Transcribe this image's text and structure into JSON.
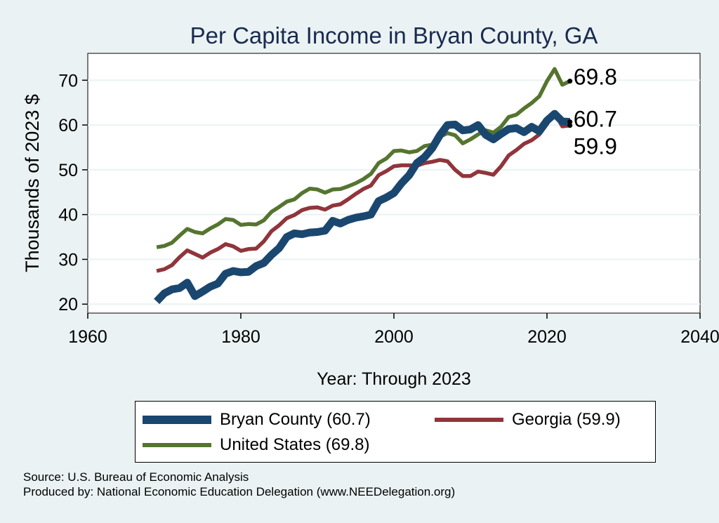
{
  "chart_data": {
    "type": "line",
    "title": "Per Capita Income in Bryan County, GA",
    "xlabel": "Year: Through 2023",
    "ylabel": "Thousands of 2023 $",
    "xlim": [
      1960,
      2040
    ],
    "ylim": [
      18,
      76
    ],
    "xticks": [
      1960,
      1980,
      2000,
      2020,
      2040
    ],
    "yticks": [
      20,
      30,
      40,
      50,
      60,
      70
    ],
    "grid": true,
    "legend_position": "bottom",
    "x": [
      1969,
      1970,
      1971,
      1972,
      1973,
      1974,
      1975,
      1976,
      1977,
      1978,
      1979,
      1980,
      1981,
      1982,
      1983,
      1984,
      1985,
      1986,
      1987,
      1988,
      1989,
      1990,
      1991,
      1992,
      1993,
      1994,
      1995,
      1996,
      1997,
      1998,
      1999,
      2000,
      2001,
      2002,
      2003,
      2004,
      2005,
      2006,
      2007,
      2008,
      2009,
      2010,
      2011,
      2012,
      2013,
      2014,
      2015,
      2016,
      2017,
      2018,
      2019,
      2020,
      2021,
      2022,
      2023
    ],
    "series": [
      {
        "name": "Bryan County",
        "legend_label": "Bryan County (60.7)",
        "end_label": "60.7",
        "color": "#1a476f",
        "values": [
          20.6,
          22.4,
          23.3,
          23.6,
          24.8,
          21.8,
          22.8,
          23.9,
          24.6,
          26.8,
          27.4,
          27.1,
          27.2,
          28.5,
          29.2,
          31.0,
          32.5,
          35.0,
          35.8,
          35.6,
          36.0,
          36.1,
          36.4,
          38.6,
          38.0,
          38.8,
          39.3,
          39.6,
          40.0,
          43.0,
          43.8,
          44.8,
          47.0,
          48.8,
          51.5,
          52.8,
          54.8,
          57.7,
          60.0,
          60.1,
          58.8,
          59.0,
          60.0,
          57.8,
          56.8,
          58.0,
          59.1,
          59.3,
          58.4,
          59.6,
          58.6,
          61.0,
          62.5,
          60.8,
          60.7
        ]
      },
      {
        "name": "Georgia",
        "legend_label": "Georgia (59.9)",
        "end_label": "59.9",
        "color": "#90353b",
        "values": [
          27.4,
          27.8,
          28.7,
          30.5,
          32.0,
          31.2,
          30.4,
          31.5,
          32.3,
          33.4,
          32.9,
          31.9,
          32.3,
          32.4,
          34.0,
          36.3,
          37.6,
          39.2,
          39.9,
          41.0,
          41.5,
          41.6,
          41.1,
          42.0,
          42.3,
          43.4,
          44.6,
          45.7,
          46.5,
          48.8,
          49.7,
          50.8,
          51.0,
          51.0,
          50.9,
          51.5,
          51.8,
          52.2,
          51.9,
          50.0,
          48.6,
          48.6,
          49.6,
          49.3,
          48.9,
          50.8,
          53.2,
          54.4,
          55.8,
          56.6,
          57.9,
          60.2,
          62.7,
          59.7,
          59.9
        ]
      },
      {
        "name": "United States",
        "legend_label": "United States (69.8)",
        "end_label": "69.8",
        "color": "#55752f",
        "values": [
          32.7,
          33.0,
          33.7,
          35.3,
          36.8,
          36.1,
          35.8,
          36.9,
          37.8,
          39.0,
          38.8,
          37.7,
          37.9,
          37.8,
          38.7,
          40.6,
          41.7,
          42.9,
          43.4,
          44.8,
          45.8,
          45.6,
          44.9,
          45.6,
          45.7,
          46.3,
          47.0,
          47.9,
          49.1,
          51.5,
          52.5,
          54.2,
          54.3,
          53.9,
          54.2,
          55.3,
          55.6,
          57.4,
          58.2,
          57.7,
          55.9,
          56.8,
          57.9,
          58.8,
          58.3,
          59.6,
          61.8,
          62.3,
          63.7,
          64.9,
          66.4,
          69.8,
          72.5,
          69.0,
          69.8
        ]
      }
    ],
    "source": "Source: U.S. Bureau of Economic Analysis",
    "produced_by": "Produced by: National Economic Education Delegation (www.NEEDelegation.org)"
  }
}
